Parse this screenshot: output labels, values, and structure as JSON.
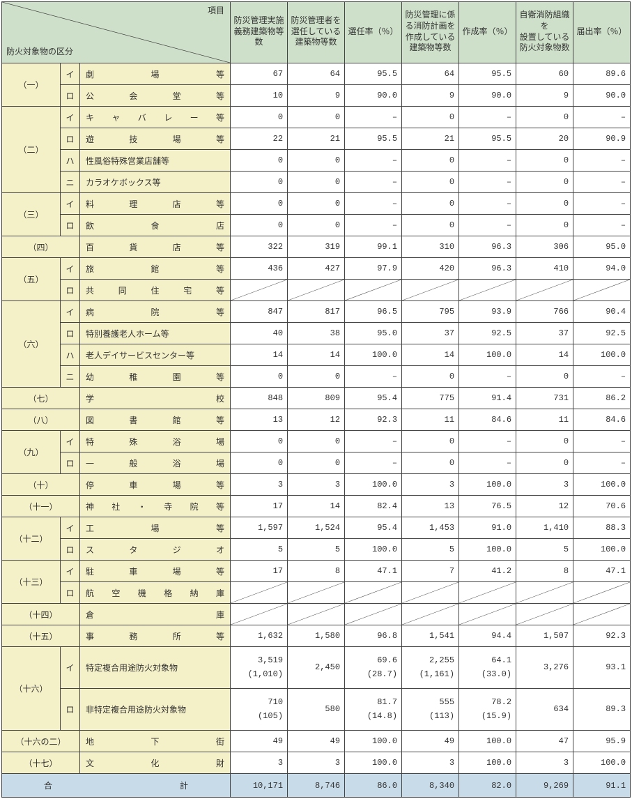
{
  "header": {
    "corner_top": "項目",
    "corner_bottom": "防火対象物の区分",
    "cols": [
      "防災管理実施\n義務建築物等数",
      "防災管理者を\n選任している\n建築物等数",
      "選任率（％）",
      "防災管理に係\nる消防計画を\n作成している\n建築物等数",
      "作成率（％）",
      "自衛消防組織を\n設置している\n防火対象物数",
      "届出率（％）"
    ]
  },
  "rows": [
    {
      "cat": "（一）",
      "sub": "イ",
      "name": "劇場等",
      "v": [
        "67",
        "64",
        "95.5",
        "64",
        "95.5",
        "60",
        "89.6"
      ]
    },
    {
      "sub": "ロ",
      "name": "公会堂等",
      "v": [
        "10",
        "9",
        "90.0",
        "9",
        "90.0",
        "9",
        "90.0"
      ]
    },
    {
      "cat": "（二）",
      "sub": "イ",
      "name": "キャバレー等",
      "v": [
        "0",
        "0",
        "–",
        "0",
        "–",
        "0",
        "–"
      ]
    },
    {
      "sub": "ロ",
      "name": "遊技場等",
      "v": [
        "22",
        "21",
        "95.5",
        "21",
        "95.5",
        "20",
        "90.9"
      ]
    },
    {
      "sub": "ハ",
      "name": "性風俗特殊営業店舗等",
      "nojust": true,
      "v": [
        "0",
        "0",
        "–",
        "0",
        "–",
        "0",
        "–"
      ]
    },
    {
      "sub": "ニ",
      "name": "カラオケボックス等",
      "nojust": true,
      "v": [
        "0",
        "0",
        "–",
        "0",
        "–",
        "0",
        "–"
      ]
    },
    {
      "cat": "（三）",
      "sub": "イ",
      "name": "料理店等",
      "v": [
        "0",
        "0",
        "–",
        "0",
        "–",
        "0",
        "–"
      ]
    },
    {
      "sub": "ロ",
      "name": "飲食店",
      "v": [
        "0",
        "0",
        "–",
        "0",
        "–",
        "0",
        "–"
      ]
    },
    {
      "cat": "（四）",
      "name": "百貨店等",
      "v": [
        "322",
        "319",
        "99.1",
        "310",
        "96.3",
        "306",
        "95.0"
      ]
    },
    {
      "cat": "（五）",
      "sub": "イ",
      "name": "旅館等",
      "v": [
        "436",
        "427",
        "97.9",
        "420",
        "96.3",
        "410",
        "94.0"
      ]
    },
    {
      "sub": "ロ",
      "name": "共同住宅等",
      "diag": true
    },
    {
      "cat": "（六）",
      "sub": "イ",
      "name": "病院等",
      "v": [
        "847",
        "817",
        "96.5",
        "795",
        "93.9",
        "766",
        "90.4"
      ]
    },
    {
      "sub": "ロ",
      "name": "特別養護老人ホーム等",
      "nojust": true,
      "v": [
        "40",
        "38",
        "95.0",
        "37",
        "92.5",
        "37",
        "92.5"
      ]
    },
    {
      "sub": "ハ",
      "name": "老人デイサービスセンター等",
      "nojust": true,
      "v": [
        "14",
        "14",
        "100.0",
        "14",
        "100.0",
        "14",
        "100.0"
      ]
    },
    {
      "sub": "ニ",
      "name": "幼稚園等",
      "v": [
        "0",
        "0",
        "–",
        "0",
        "–",
        "0",
        "–"
      ]
    },
    {
      "cat": "（七）",
      "name": "学校",
      "v": [
        "848",
        "809",
        "95.4",
        "775",
        "91.4",
        "731",
        "86.2"
      ]
    },
    {
      "cat": "（八）",
      "name": "図書館等",
      "v": [
        "13",
        "12",
        "92.3",
        "11",
        "84.6",
        "11",
        "84.6"
      ]
    },
    {
      "cat": "（九）",
      "sub": "イ",
      "name": "特殊浴場",
      "v": [
        "0",
        "0",
        "–",
        "0",
        "–",
        "0",
        "–"
      ]
    },
    {
      "sub": "ロ",
      "name": "一般浴場",
      "v": [
        "0",
        "0",
        "–",
        "0",
        "–",
        "0",
        "–"
      ]
    },
    {
      "cat": "（十）",
      "name": "停車場等",
      "v": [
        "3",
        "3",
        "100.0",
        "3",
        "100.0",
        "3",
        "100.0"
      ]
    },
    {
      "cat": "（十一）",
      "name": "神社・寺院等",
      "v": [
        "17",
        "14",
        "82.4",
        "13",
        "76.5",
        "12",
        "70.6"
      ]
    },
    {
      "cat": "（十二）",
      "sub": "イ",
      "name": "工場等",
      "v": [
        "1,597",
        "1,524",
        "95.4",
        "1,453",
        "91.0",
        "1,410",
        "88.3"
      ]
    },
    {
      "sub": "ロ",
      "name": "スタジオ",
      "v": [
        "5",
        "5",
        "100.0",
        "5",
        "100.0",
        "5",
        "100.0"
      ]
    },
    {
      "cat": "（十三）",
      "sub": "イ",
      "name": "駐車場等",
      "v": [
        "17",
        "8",
        "47.1",
        "7",
        "41.2",
        "8",
        "47.1"
      ]
    },
    {
      "sub": "ロ",
      "name": "航空機格納庫",
      "diag": true
    },
    {
      "cat": "（十四）",
      "name": "倉庫",
      "diag": true
    },
    {
      "cat": "（十五）",
      "name": "事務所等",
      "v": [
        "1,632",
        "1,580",
        "96.8",
        "1,541",
        "94.4",
        "1,507",
        "92.3"
      ]
    },
    {
      "cat": "（十六）",
      "sub": "イ",
      "name": "特定複合用途防火対象物",
      "nojust": true,
      "tall": true,
      "v": [
        "3,519\n(1,010)",
        "2,450\n(28.7)",
        "69.6\n(1,161)",
        "2,255\n(33.0)",
        "64.1\n",
        "3,276",
        "93.1"
      ],
      "v_fix": [
        "3,519<br>(1,010)",
        "2,450",
        "69.6<br>(28.7)",
        "2,255<br>(1,161)",
        "64.1<br>(33.0)",
        "3,276",
        "93.1"
      ]
    },
    {
      "sub": "ロ",
      "name": "非特定複合用途防火対象物",
      "nojust": true,
      "tall": true,
      "v_fix": [
        "710<br>(105)",
        "580",
        "81.7<br>(14.8)",
        "555<br>(113)",
        "78.2<br>(15.9)",
        "634",
        "89.3"
      ]
    },
    {
      "cat": "（十六の二）",
      "name": "地下街",
      "v": [
        "49",
        "49",
        "100.0",
        "49",
        "100.0",
        "47",
        "95.9"
      ]
    },
    {
      "cat": "（十七）",
      "name": "文化財",
      "v": [
        "3",
        "3",
        "100.0",
        "3",
        "100.0",
        "3",
        "100.0"
      ]
    }
  ],
  "total": {
    "label": "合計",
    "v": [
      "10,171",
      "8,746",
      "86.0",
      "8,340",
      "82.0",
      "9,269",
      "91.1"
    ]
  },
  "catSpans": {
    "（一）": 2,
    "（二）": 4,
    "（三）": 2,
    "（四）": 1,
    "（五）": 2,
    "（六）": 4,
    "（七）": 1,
    "（八）": 1,
    "（九）": 2,
    "（十）": 1,
    "（十一）": 1,
    "（十二）": 2,
    "（十三）": 2,
    "（十四）": 1,
    "（十五）": 1,
    "（十六）": 2,
    "（十六の二）": 1,
    "（十七）": 1
  }
}
